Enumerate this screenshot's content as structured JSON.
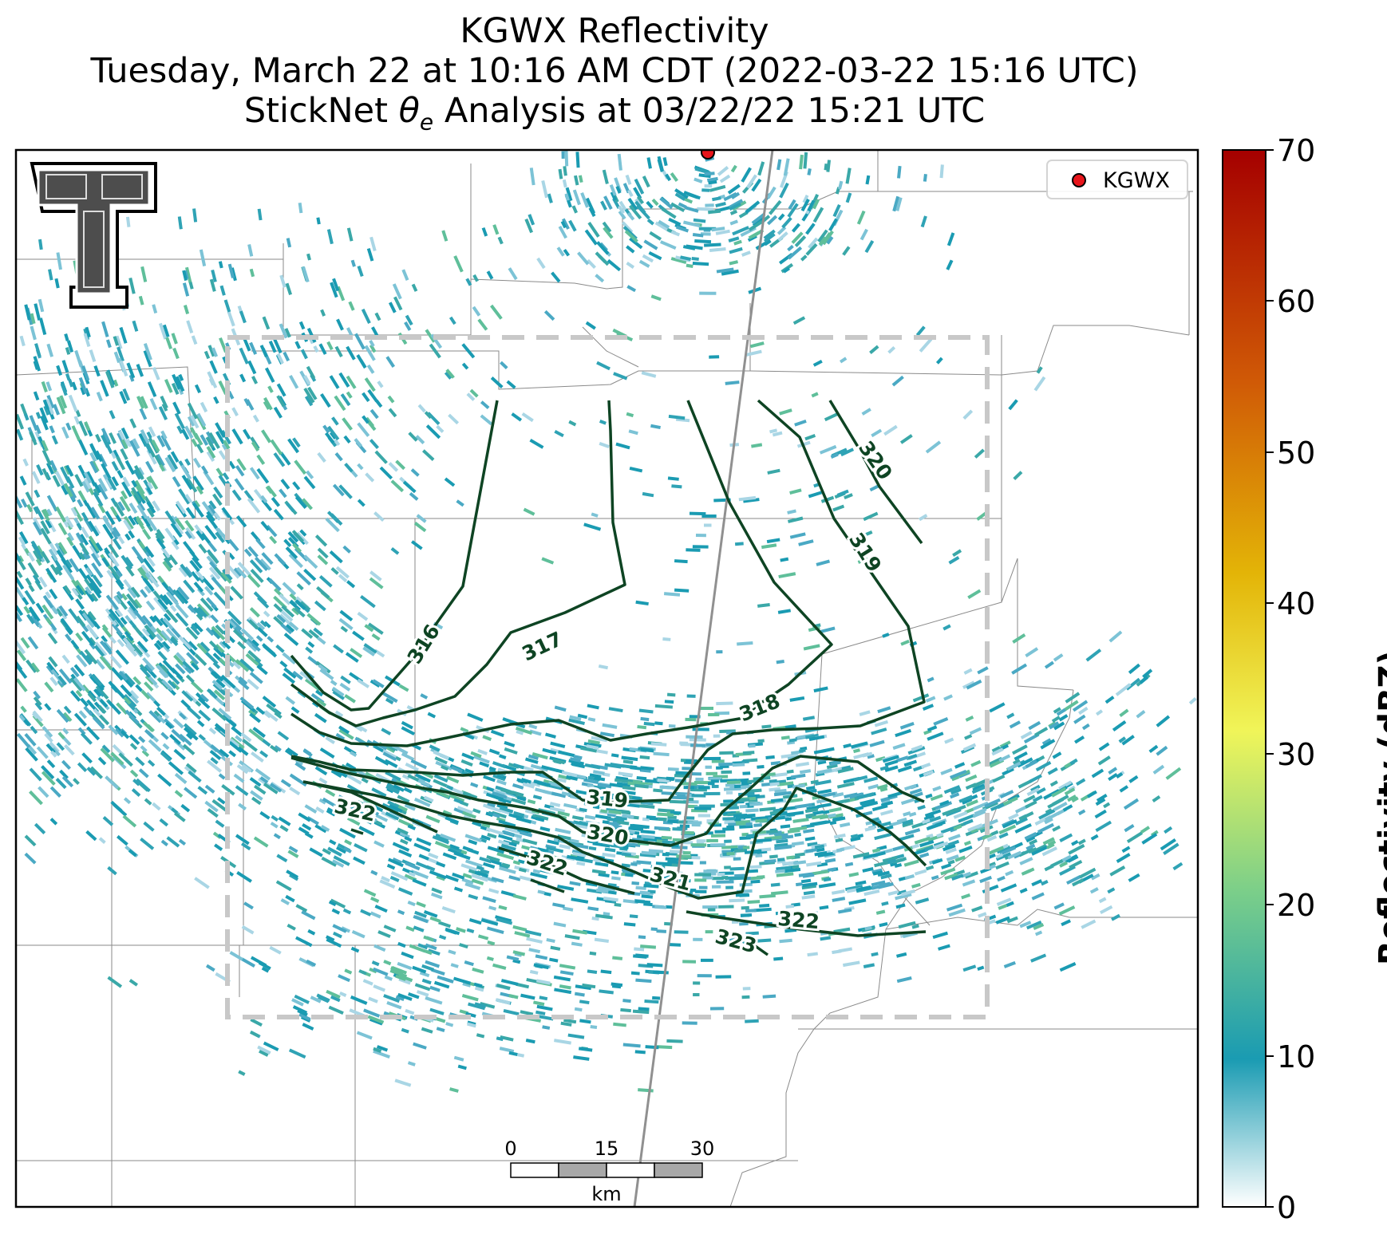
{
  "title": {
    "line1": "KGWX Reflectivity",
    "line2": "Tuesday, March 22 at 10:16 AM CDT (2022-03-22 15:16 UTC)",
    "line3_prefix": "StickNet ",
    "line3_symbol": "θ",
    "line3_sub": "e",
    "line3_suffix": " Analysis at 03/22/22 15:21 UTC"
  },
  "legend": {
    "label": "KGWX",
    "marker_color": "#e8151b"
  },
  "radar_site": {
    "name": "KGWX",
    "color": "#e8151b"
  },
  "colorbar": {
    "label": "Reflectivity (dBZ)",
    "ticks": [
      "0",
      "10",
      "20",
      "30",
      "40",
      "50",
      "60",
      "70"
    ],
    "min": 0,
    "max": 70,
    "colors": [
      "#ffffff",
      "#1a9bb2",
      "#7ccf89",
      "#f0f559",
      "#e3b407",
      "#d05a06",
      "#a50000"
    ]
  },
  "scalebar": {
    "ticks": [
      "0",
      "15",
      "30"
    ],
    "unit": "km"
  },
  "contours": {
    "color": "#0e4423",
    "labels": [
      "316",
      "317",
      "318",
      "319",
      "319",
      "320",
      "320",
      "321",
      "322",
      "322",
      "322",
      "323"
    ]
  },
  "logo": {
    "letter": "T",
    "name": "texas-tech-logo"
  }
}
